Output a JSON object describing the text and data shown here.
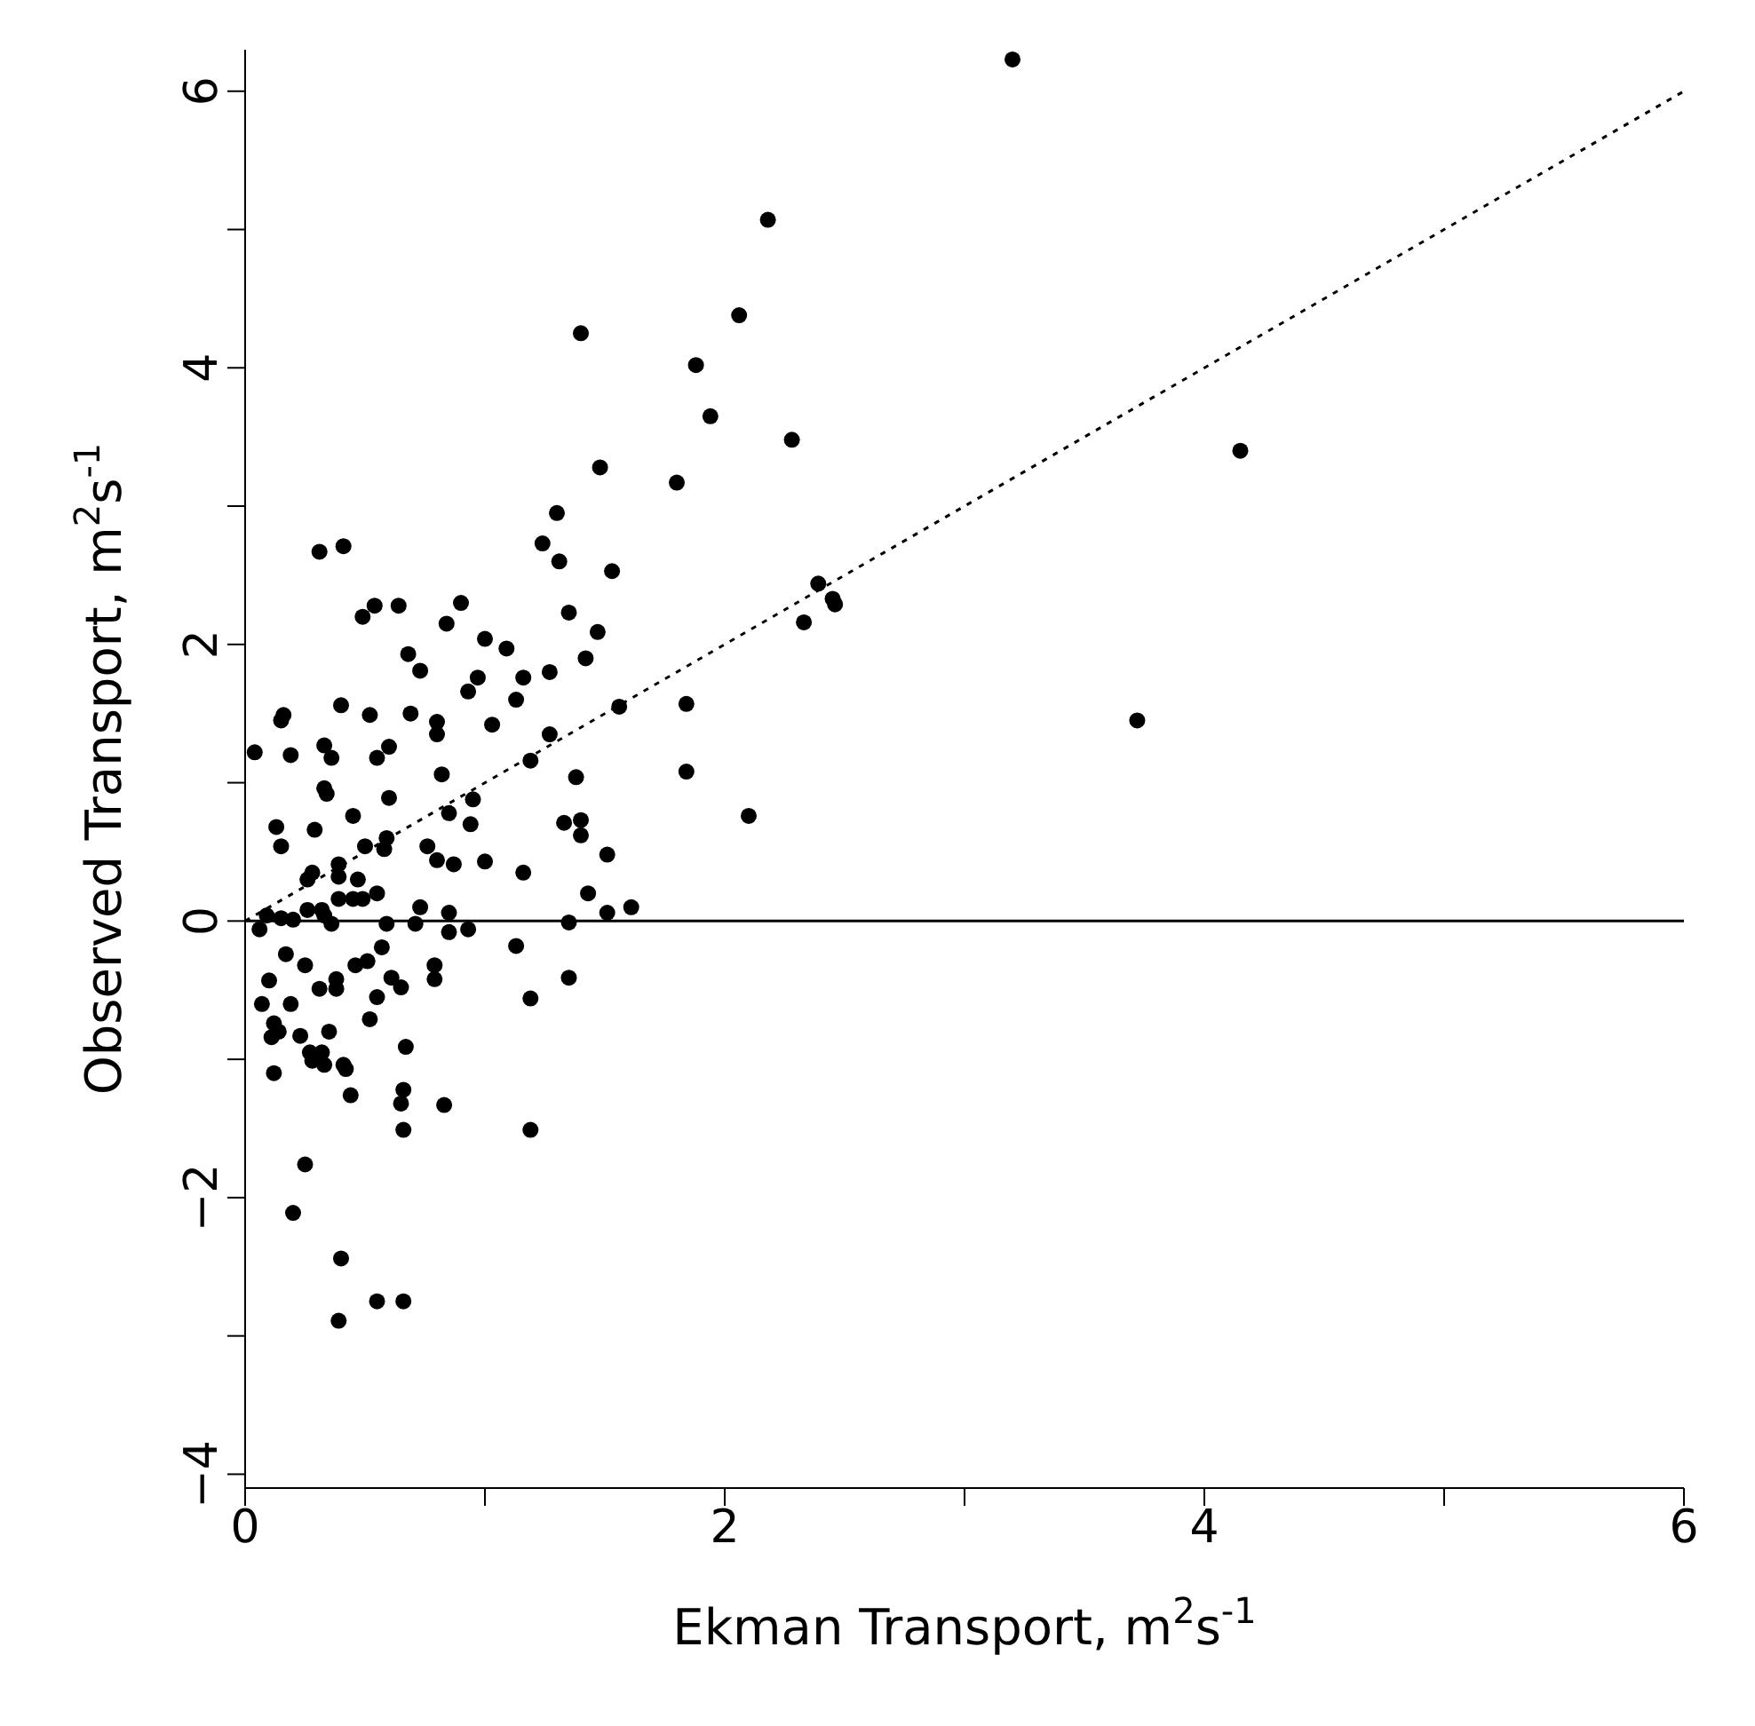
{
  "chart_data": {
    "type": "scatter",
    "xlabel": "Ekman Transport, m$^{2}$s$^{-1}$",
    "ylabel": "Observed Transport, m$^{2}$s$^{-1}$",
    "xlim": [
      0,
      6
    ],
    "ylim": [
      -4.1,
      6.3
    ],
    "xticks": [
      0,
      {
        "value": 1,
        "label": null
      },
      2,
      {
        "value": 3,
        "label": null
      },
      4,
      {
        "value": 5,
        "label": null
      },
      6
    ],
    "yticks": [
      -4,
      {
        "value": -3,
        "label": null
      },
      -2,
      {
        "value": -1,
        "label": null
      },
      0,
      {
        "value": 1,
        "label": null
      },
      2,
      {
        "value": 3,
        "label": null
      },
      4,
      {
        "value": 5,
        "label": null
      },
      6
    ],
    "ref_lines": [
      {
        "axis": "y",
        "value": 0,
        "color": "#000000",
        "line_style": "solid"
      }
    ],
    "series": [
      {
        "color": "#000000",
        "marker": "circle",
        "x": [
          1.3,
          1.24,
          1.31,
          1.53,
          0.31,
          0.41,
          0.49,
          0.54,
          0.64,
          0.9,
          0.84,
          1.35,
          1.47,
          1.0,
          1.09,
          0.68,
          0.73,
          0.97,
          1.16,
          1.27,
          1.42,
          0.93,
          1.13,
          1.56,
          0.16,
          0.15,
          0.4,
          0.52,
          0.69,
          0.8,
          0.8,
          1.03,
          1.27,
          0.04,
          0.19,
          0.33,
          0.36,
          0.55,
          0.6,
          1.19,
          0.82,
          1.38,
          0.33,
          0.34,
          0.6,
          0.95,
          0.85,
          0.45,
          0.94,
          1.33,
          1.4,
          1.4,
          0.13,
          0.29,
          0.15,
          0.59,
          0.58,
          0.5,
          0.76,
          0.8,
          0.87,
          1.0,
          1.51,
          1.16,
          0.39,
          0.28,
          0.26,
          0.39,
          0.47,
          1.43,
          0.39,
          0.45,
          0.49,
          0.55,
          0.26,
          0.32,
          0.33,
          0.73,
          0.85,
          1.51,
          1.61,
          0.09,
          0.15,
          0.2,
          0.36,
          0.59,
          0.71,
          1.35,
          0.06,
          0.85,
          0.93,
          0.17,
          0.25,
          0.1,
          0.31,
          0.38,
          0.38,
          0.46,
          0.51,
          0.57,
          0.61,
          0.65,
          0.55,
          0.52,
          0.79,
          0.79,
          1.13,
          1.35,
          1.19,
          0.07,
          0.19,
          0.12,
          0.14,
          0.11,
          0.23,
          0.35,
          0.27,
          0.32,
          0.28,
          0.33,
          0.41,
          0.42,
          0.12,
          0.67,
          0.44,
          0.66,
          0.65,
          0.83,
          0.66,
          1.19,
          0.25,
          0.2,
          0.4,
          0.55,
          0.66,
          0.39,
          3.2,
          2.18,
          2.06,
          1.4,
          1.88,
          1.94,
          2.28,
          1.48,
          1.8,
          4.15,
          2.39,
          2.45,
          2.46,
          2.33,
          1.84,
          1.84,
          3.72,
          2.1
        ],
        "values": [
          2.95,
          2.73,
          2.6,
          2.53,
          2.67,
          2.71,
          2.2,
          2.28,
          2.28,
          2.3,
          2.15,
          2.23,
          2.09,
          2.04,
          1.97,
          1.93,
          1.81,
          1.76,
          1.76,
          1.8,
          1.9,
          1.66,
          1.6,
          1.55,
          1.49,
          1.45,
          1.56,
          1.49,
          1.5,
          1.44,
          1.35,
          1.42,
          1.35,
          1.22,
          1.2,
          1.27,
          1.18,
          1.18,
          1.26,
          1.16,
          1.06,
          1.04,
          0.96,
          0.92,
          0.89,
          0.88,
          0.78,
          0.76,
          0.7,
          0.71,
          0.73,
          0.62,
          0.68,
          0.66,
          0.54,
          0.6,
          0.52,
          0.54,
          0.54,
          0.44,
          0.41,
          0.43,
          0.48,
          0.35,
          0.41,
          0.35,
          0.3,
          0.32,
          0.3,
          0.2,
          0.16,
          0.16,
          0.16,
          0.2,
          0.08,
          0.08,
          0.04,
          0.1,
          0.06,
          0.06,
          0.1,
          0.04,
          0.02,
          0.01,
          -0.02,
          -0.02,
          -0.02,
          -0.01,
          -0.06,
          -0.08,
          -0.06,
          -0.24,
          -0.32,
          -0.43,
          -0.49,
          -0.42,
          -0.49,
          -0.32,
          -0.29,
          -0.19,
          -0.41,
          -0.48,
          -0.55,
          -0.71,
          -0.32,
          -0.42,
          -0.18,
          -0.41,
          -0.56,
          -0.6,
          -0.6,
          -0.74,
          -0.8,
          -0.84,
          -0.83,
          -0.8,
          -0.95,
          -0.95,
          -1.01,
          -1.04,
          -1.04,
          -1.07,
          -1.1,
          -0.91,
          -1.26,
          -1.22,
          -1.32,
          -1.33,
          -1.51,
          -1.51,
          -1.76,
          -2.11,
          -2.44,
          -2.75,
          -2.75,
          -2.89,
          6.23,
          5.07,
          4.38,
          4.25,
          4.02,
          3.65,
          3.48,
          3.28,
          3.17,
          3.4,
          2.44,
          2.33,
          2.29,
          2.16,
          1.57,
          1.08,
          1.45,
          0.76
        ]
      },
      {
        "type": "line",
        "color": "#000000",
        "marker": "none",
        "line_style": "dotted",
        "x": [
          0,
          6
        ],
        "values": [
          0,
          6
        ]
      }
    ]
  }
}
